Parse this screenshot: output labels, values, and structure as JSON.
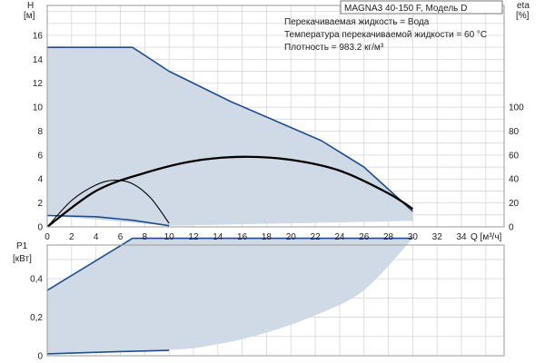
{
  "chart_data": {
    "type": "line",
    "title": "MAGNA3 40-150 F, Модель D",
    "notes": [
      "Перекачиваемая жидкость = Вода",
      "Температура перекачиваемой жидкости = 60 °C",
      "Плотность = 983.2 кг/м³"
    ],
    "x_label": "Q [м³/ч]",
    "x_ticks": [
      0,
      2,
      4,
      6,
      8,
      10,
      12,
      14,
      16,
      18,
      20,
      22,
      24,
      26,
      28,
      30,
      32,
      34
    ],
    "x_range": [
      0,
      37.5
    ],
    "top": {
      "y_label_top": "H",
      "y_label_unit": "[м]",
      "y_ticks": [
        0,
        2,
        4,
        6,
        8,
        10,
        12,
        14,
        16
      ],
      "y_range": [
        0,
        18.5
      ],
      "y2_label_top": "eta",
      "y2_label_unit": "[%]",
      "y2_ticks": [
        0,
        20,
        40,
        60,
        80,
        100
      ],
      "y2_range": [
        0,
        185
      ],
      "region_max_H": [
        [
          0,
          15
        ],
        [
          7,
          15
        ],
        [
          10,
          13
        ],
        [
          15,
          10.5
        ],
        [
          22.5,
          7.2
        ],
        [
          26,
          5
        ],
        [
          30,
          1.3
        ]
      ],
      "region_min_H": [
        [
          0,
          0.95
        ],
        [
          10,
          0.1
        ],
        [
          30,
          0.5
        ]
      ],
      "series": [
        {
          "name": "",
          "axis": "H",
          "color": "#1f4e8c",
          "points": [
            [
              0,
              15
            ],
            [
              7,
              15
            ],
            [
              10,
              13
            ],
            [
              15,
              10.5
            ],
            [
              22.5,
              7.2
            ],
            [
              26,
              5
            ],
            [
              30,
              1.3
            ]
          ]
        },
        {
          "name": "",
          "axis": "H",
          "color": "#1f4e8c",
          "points": [
            [
              0,
              0.95
            ],
            [
              4,
              0.85
            ],
            [
              7,
              0.55
            ],
            [
              10,
              0.1
            ]
          ]
        },
        {
          "name": "",
          "axis": "eta",
          "color": "#000000",
          "width": 2.3,
          "points": [
            [
              0,
              0
            ],
            [
              4,
              30
            ],
            [
              8,
              45
            ],
            [
              12,
              55
            ],
            [
              16,
              58.5
            ],
            [
              20,
              56
            ],
            [
              24,
              47
            ],
            [
              28,
              28
            ],
            [
              30,
              15
            ]
          ]
        },
        {
          "name": "",
          "axis": "eta",
          "color": "#000000",
          "width": 1.1,
          "points": [
            [
              0,
              0
            ],
            [
              2,
              22
            ],
            [
              4,
              35
            ],
            [
              5.5,
              39
            ],
            [
              7,
              36
            ],
            [
              8.5,
              24
            ],
            [
              10,
              3
            ]
          ]
        }
      ]
    },
    "bottom": {
      "y_label_top": "P1",
      "y_label_unit": "[кВт]",
      "y_ticks": [
        "0",
        "0,2",
        "0,4"
      ],
      "y_tick_values": [
        0,
        0.2,
        0.4
      ],
      "y_range": [
        0,
        0.575
      ],
      "region_max_P": [
        [
          0,
          0.34
        ],
        [
          7,
          0.61
        ],
        [
          30,
          0.61
        ]
      ],
      "region_min_P": [
        [
          0,
          0.01
        ],
        [
          10,
          0.03
        ],
        [
          14,
          0.06
        ],
        [
          18,
          0.12
        ],
        [
          22,
          0.21
        ],
        [
          26,
          0.34
        ],
        [
          30,
          0.61
        ]
      ],
      "series": [
        {
          "name": "",
          "color": "#1f4e8c",
          "points": [
            [
              0,
              0.34
            ],
            [
              7,
              0.61
            ],
            [
              30,
              0.61
            ]
          ]
        },
        {
          "name": "",
          "color": "#1f4e8c",
          "points": [
            [
              0,
              0.01
            ],
            [
              5,
              0.02
            ],
            [
              10,
              0.028
            ]
          ]
        }
      ]
    },
    "grid": true,
    "fill_color": "#cfdae6"
  }
}
